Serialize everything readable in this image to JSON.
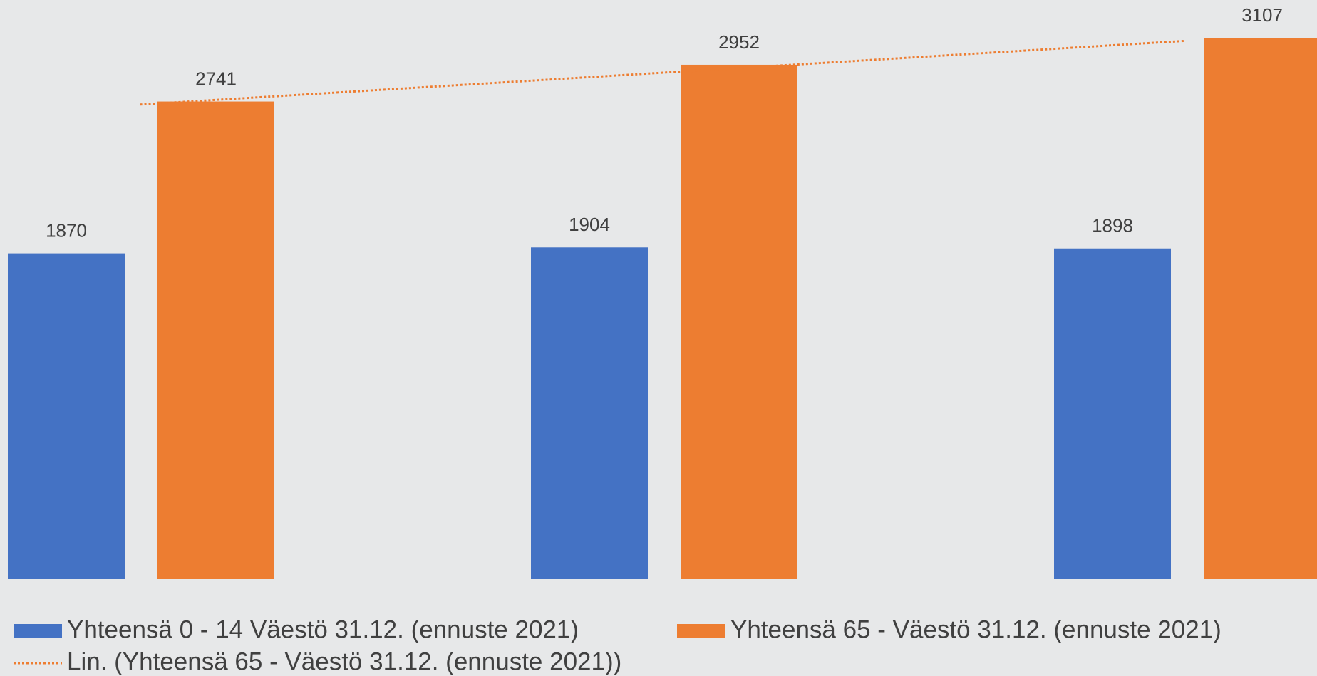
{
  "chart_data": {
    "type": "bar",
    "categories": [
      null,
      null,
      null
    ],
    "series": [
      {
        "name": "Yhteensä 0 - 14 Väestö 31.12. (ennuste 2021)",
        "color": "#4472c4",
        "values": [
          1870,
          1904,
          1898
        ]
      },
      {
        "name": "Yhteensä 65 - Väestö 31.12. (ennuste 2021)",
        "color": "#ed7d31",
        "values": [
          2741,
          2952,
          3107
        ]
      }
    ],
    "trendline": {
      "name": "Lin. (Yhteensä 65 - Väestö 31.12. (ennuste 2021))",
      "color": "#ed7d31",
      "series": 1
    },
    "ylim": [
      0,
      3300
    ]
  }
}
